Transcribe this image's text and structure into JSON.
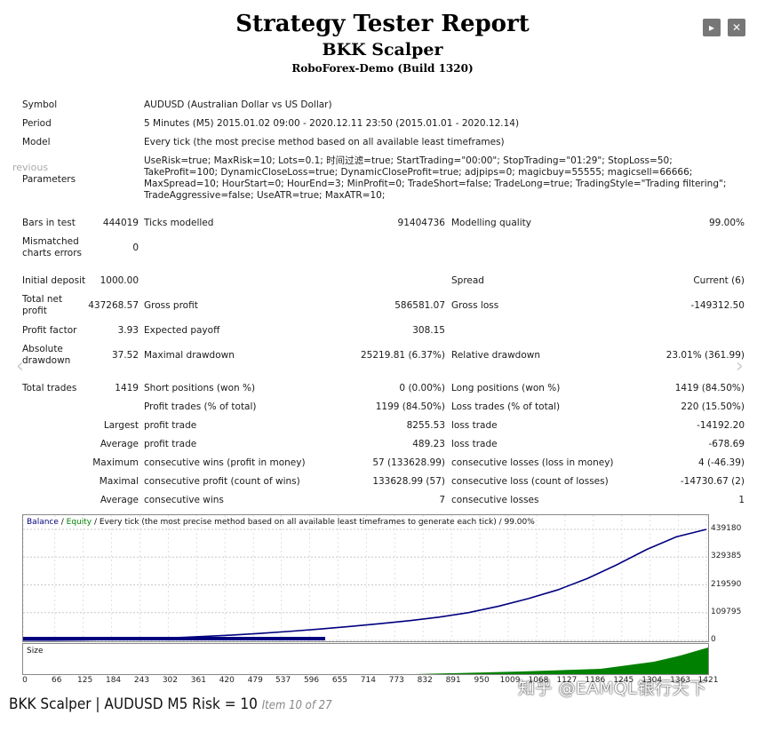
{
  "header": {
    "title": "Strategy Tester Report",
    "subtitle": "BKK Scalper",
    "server": "RoboForex-Demo (Build 1320)"
  },
  "controls": {
    "play_icon": "play-icon",
    "close_icon": "close-icon"
  },
  "info": {
    "symbol_label": "Symbol",
    "symbol_value": "AUDUSD (Australian Dollar vs US Dollar)",
    "period_label": "Period",
    "period_value": "5 Minutes (M5) 2015.01.02 09:00 - 2020.12.11 23:50 (2015.01.01 - 2020.12.14)",
    "model_label": "Model",
    "model_value": "Every tick (the most precise method based on all available least timeframes)",
    "parameters_label": "Parameters",
    "parameters_value": "UseRisk=true; MaxRisk=10; Lots=0.1; 时间过滤=true; StartTrading=\"00:00\"; StopTrading=\"01:29\"; StopLoss=50; TakeProfit=100; DynamicCloseLoss=true; DynamicCloseProfit=true; adjpips=0; magicbuy=55555; magicsell=66666; MaxSpread=10; HourStart=0; HourEnd=3; MinProfit=0; TradeShort=false; TradeLong=true; TradingStyle=\"Trading filtering\"; TradeAggressive=false; UseATR=true; MaxATR=10;"
  },
  "stats": {
    "bars_label": "Bars in test",
    "bars_value": "444019",
    "ticks_label": "Ticks modelled",
    "ticks_value": "91404736",
    "quality_label": "Modelling quality",
    "quality_value": "99.00%",
    "mismatch_label": "Mismatched charts errors",
    "mismatch_value": "0",
    "deposit_label": "Initial deposit",
    "deposit_value": "1000.00",
    "spread_label": "Spread",
    "spread_value": "Current (6)",
    "netprofit_label": "Total net profit",
    "netprofit_value": "437268.57",
    "grossprofit_label": "Gross profit",
    "grossprofit_value": "586581.07",
    "grossloss_label": "Gross loss",
    "grossloss_value": "-149312.50",
    "pf_label": "Profit factor",
    "pf_value": "3.93",
    "payoff_label": "Expected payoff",
    "payoff_value": "308.15",
    "absdd_label": "Absolute drawdown",
    "absdd_value": "37.52",
    "maxdd_label": "Maximal drawdown",
    "maxdd_value": "25219.81 (6.37%)",
    "reldd_label": "Relative drawdown",
    "reldd_value": "23.01% (361.99)",
    "trades_label": "Total trades",
    "trades_value": "1419",
    "short_label": "Short positions (won %)",
    "short_value": "0 (0.00%)",
    "long_label": "Long positions (won %)",
    "long_value": "1419 (84.50%)",
    "pt_label": "Profit trades (% of total)",
    "pt_value": "1199 (84.50%)",
    "lt_label": "Loss trades (% of total)",
    "lt_value": "220 (15.50%)",
    "largest_label": "Largest",
    "lp_label": "profit trade",
    "lp_value": "8255.53",
    "ll_label": "loss trade",
    "ll_value": "-14192.20",
    "average_label": "Average",
    "ap_label": "profit trade",
    "ap_value": "489.23",
    "al_label": "loss trade",
    "al_value": "-678.69",
    "maximum_label": "Maximum",
    "mcw_label": "consecutive wins (profit in money)",
    "mcw_value": "57 (133628.99)",
    "mcl_label": "consecutive losses (loss in money)",
    "mcl_value": "4 (-46.39)",
    "maximal_label": "Maximal",
    "mcp_label": "consecutive profit (count of wins)",
    "mcp_value": "133628.99 (57)",
    "mclc_label": "consecutive loss (count of losses)",
    "mclc_value": "-14730.67 (2)",
    "average2_label": "Average",
    "acw_label": "consecutive wins",
    "acw_value": "7",
    "acl_label": "consecutive losses",
    "acl_value": "1"
  },
  "chart_data": {
    "type": "line",
    "legend": {
      "balance": "Balance",
      "slash": " / ",
      "equity": "Equity",
      "rest": " / Every tick (the most precise method based on all available least timeframes to generate each tick) / 99.00%"
    },
    "series": [
      {
        "name": "Balance",
        "color": "#00007f",
        "values": [
          1000,
          1200,
          1800,
          3500,
          6000,
          10000,
          15000,
          21000,
          28000,
          36000,
          45000,
          55000,
          66000,
          78000,
          92000,
          110000,
          135000,
          165000,
          200000,
          245000,
          300000,
          360000,
          410000,
          439180
        ]
      },
      {
        "name": "Equity",
        "color": "#008000",
        "values": []
      }
    ],
    "y_ticks": [
      "439180",
      "329385",
      "219590",
      "109795",
      "0"
    ],
    "y_tick_values": [
      439180,
      329385,
      219590,
      109795,
      0
    ],
    "ylim": [
      0,
      439180
    ],
    "x_ticks": [
      "0",
      "66",
      "125",
      "184",
      "243",
      "302",
      "361",
      "420",
      "479",
      "537",
      "596",
      "655",
      "714",
      "773",
      "832",
      "891",
      "950",
      "1009",
      "1068",
      "1127",
      "1186",
      "1245",
      "1304",
      "1363",
      "1421"
    ],
    "x_tick_values": [
      0,
      66,
      125,
      184,
      243,
      302,
      361,
      420,
      479,
      537,
      596,
      655,
      714,
      773,
      832,
      891,
      950,
      1009,
      1068,
      1127,
      1186,
      1245,
      1304,
      1363,
      1421
    ],
    "xlim": [
      0,
      1421
    ],
    "size_label": "Size",
    "size_color": "#008000"
  },
  "caption": {
    "main": "BKK Scalper | AUDUSD M5 Risk = 10 ",
    "item": "Item 10 of 27"
  },
  "gallery": {
    "prev_text": "revious"
  },
  "watermark": "知乎 @EAMQL银行天下"
}
